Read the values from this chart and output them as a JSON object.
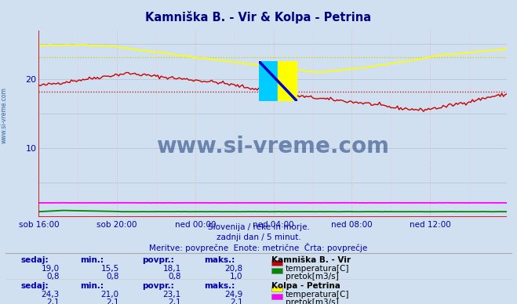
{
  "title": "Kamniška B. - Vir & Kolpa - Petrina",
  "subtitle1": "Slovenija / reke in morje.",
  "subtitle2": "zadnji dan / 5 minut.",
  "subtitle3": "Meritve: povprečne  Enote: metrične  Črta: povprečje",
  "bg_color": "#d0e0f0",
  "plot_bg_color": "#d0e0f0",
  "grid_color_h": "#c8c8d8",
  "grid_color_v": "#e8c8c8",
  "title_color": "#000080",
  "label_color": "#0000aa",
  "x_tick_labels": [
    "sob 16:00",
    "sob 20:00",
    "ned 00:00",
    "ned 04:00",
    "ned 08:00",
    "ned 12:00"
  ],
  "x_tick_positions": [
    0,
    48,
    96,
    144,
    192,
    240
  ],
  "n_points": 288,
  "ylim": [
    0,
    27
  ],
  "yticks": [
    10,
    20
  ],
  "kamniska_temp_sedaj": 19.0,
  "kamniska_temp_min": 15.5,
  "kamniska_temp_povpr": 18.1,
  "kamniska_temp_maks": 20.8,
  "kamniska_pretok_sedaj": 0.8,
  "kamniska_pretok_min": 0.8,
  "kamniska_pretok_povpr": 0.8,
  "kamniska_pretok_maks": 1.0,
  "kolpa_temp_sedaj": 24.3,
  "kolpa_temp_min": 21.0,
  "kolpa_temp_povpr": 23.1,
  "kolpa_temp_maks": 24.9,
  "kolpa_pretok_sedaj": 2.1,
  "kolpa_pretok_min": 2.1,
  "kolpa_pretok_povpr": 2.1,
  "kolpa_pretok_maks": 2.1,
  "color_kamniska_temp": "#cc0000",
  "color_kamniska_pretok": "#008800",
  "color_kolpa_temp": "#ffff00",
  "color_kolpa_pretok": "#ff00ff",
  "color_kamniska_avg": "#cc0000",
  "color_kolpa_avg": "#cccc00",
  "watermark_color": "#1a3a7a",
  "axis_color": "#cc0000",
  "left_label_color": "#336699"
}
